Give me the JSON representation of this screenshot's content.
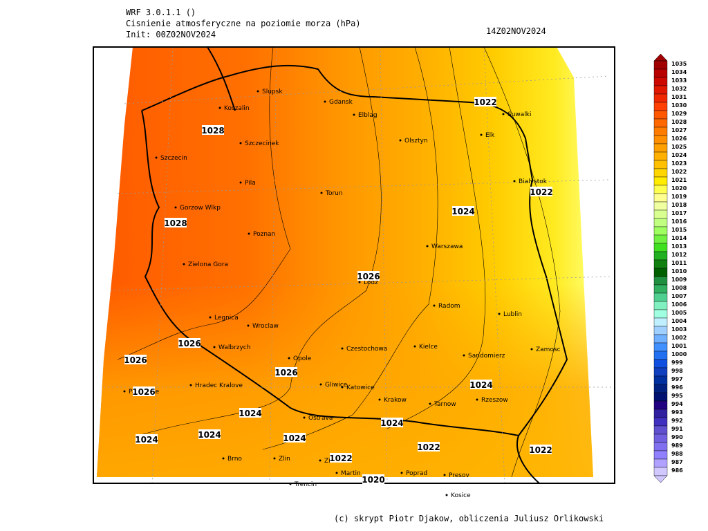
{
  "header": {
    "model": "WRF 3.0.1.1 ()",
    "title": "Cisnienie atmosferyczne na poziomie morza (hPa)",
    "init": "Init: 00Z02NOV2024",
    "valid_time": "14Z02NOV2024"
  },
  "cities": [
    "Slupsk",
    "Gdansk",
    "Koszalin",
    "Elblag",
    "Suwalki",
    "Elk",
    "Olsztyn",
    "Szczecinek",
    "Szczecin",
    "Bialystok",
    "Pila",
    "Torun",
    "Gorzow Wlkp",
    "Poznan",
    "Warszawa",
    "Zielona Gora",
    "Lodz",
    "Radom",
    "Lublin",
    "Legnica",
    "Wroclaw",
    "Walbrzych",
    "Kielce",
    "Czestochowa",
    "Sandomierz",
    "Zamosc",
    "Opole",
    "Gliwice",
    "Katowice",
    "Hradec Kralove",
    "Pardubice",
    "Krakow",
    "Tarnow",
    "Rzeszow",
    "Ostrava",
    "Brno",
    "Zlin",
    "Zilina",
    "Trencin",
    "Martin",
    "Poprad",
    "Presov",
    "Kosice"
  ],
  "contour_labels": [
    "1022",
    "1028",
    "1022",
    "1024",
    "1028",
    "1026",
    "1026",
    "1026",
    "1026",
    "1026",
    "1024",
    "1024",
    "1024",
    "1024",
    "1024",
    "1024",
    "1022",
    "1022",
    "1022",
    "1020"
  ],
  "colorbar": {
    "labels": [
      1035,
      1034,
      1033,
      1032,
      1031,
      1030,
      1029,
      1028,
      1027,
      1026,
      1025,
      1024,
      1023,
      1022,
      1021,
      1020,
      1019,
      1018,
      1017,
      1016,
      1015,
      1014,
      1013,
      1012,
      1011,
      1010,
      1009,
      1008,
      1007,
      1006,
      1005,
      1004,
      1003,
      1002,
      1001,
      1000,
      999,
      998,
      997,
      996,
      995,
      994,
      993,
      992,
      991,
      990,
      989,
      988,
      987,
      986
    ],
    "colors": [
      "#a00000",
      "#b80000",
      "#cc0800",
      "#e01800",
      "#f02800",
      "#ff4000",
      "#ff5800",
      "#ff6800",
      "#ff7c00",
      "#ff8e00",
      "#ffa000",
      "#ffb000",
      "#ffc000",
      "#ffd600",
      "#ffec00",
      "#ffff50",
      "#ffff90",
      "#f0ffa0",
      "#d8ff90",
      "#c0ff80",
      "#a0ff60",
      "#70f040",
      "#40e020",
      "#20b020",
      "#108010",
      "#006000",
      "#209040",
      "#30b060",
      "#50d090",
      "#80f0c0",
      "#a0ffe0",
      "#c0f0ff",
      "#a0d0ff",
      "#70b0ff",
      "#4090ff",
      "#2070f0",
      "#1050e0",
      "#1040c0",
      "#0030a0",
      "#002080",
      "#001070",
      "#200080",
      "#3020a0",
      "#4030c0",
      "#6050d0",
      "#7060e0",
      "#8070f0",
      "#9080ff",
      "#b0a0ff",
      "#d0c8ff"
    ]
  },
  "footer": "(c) skrypt Piotr Djakow, obliczenia Juliusz Orlikowski"
}
